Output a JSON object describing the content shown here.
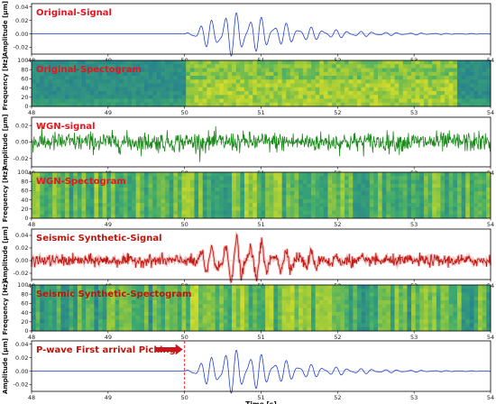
{
  "chart_data": [
    {
      "type": "line",
      "annotation": "Original-Signal",
      "ylabel": "Amplitude [μm]",
      "x_ticks": [
        "48",
        "49",
        "50",
        "51",
        "52",
        "53",
        "54"
      ],
      "y_ticks": [
        "0.04",
        "0.02",
        "0.00",
        "-0.02"
      ],
      "xlim": [
        48,
        54
      ],
      "ylim": [
        -0.03,
        0.045
      ],
      "series": [
        {
          "color": "#1f3fd6",
          "signal_onset_s": 50.0,
          "peak_time_s": 50.8,
          "peak_amplitude": 0.04
        }
      ]
    },
    {
      "type": "heatmap",
      "annotation": "Original-Spectogram",
      "ylabel": "Frequency [Hz]",
      "x_ticks": [
        "48",
        "49",
        "50",
        "51",
        "52",
        "53",
        "54"
      ],
      "y_ticks": [
        "100",
        "80",
        "60",
        "40",
        "20",
        "0"
      ],
      "xlim": [
        48,
        54
      ],
      "ylim": [
        0,
        100
      ]
    },
    {
      "type": "line",
      "annotation": "WGN-signal",
      "ylabel": "Amplitude [μm]",
      "x_ticks": [
        "48",
        "49",
        "50",
        "51",
        "52",
        "53",
        "54"
      ],
      "y_ticks": [
        "0.02",
        "0.00",
        "-0.02"
      ],
      "xlim": [
        48,
        54
      ],
      "ylim": [
        -0.03,
        0.03
      ],
      "series": [
        {
          "color": "#1a8a1a"
        }
      ]
    },
    {
      "type": "heatmap",
      "annotation": "WGN-Spectogram",
      "ylabel": "Frequency [Hz]",
      "x_ticks": [
        "48",
        "49",
        "50",
        "51",
        "52",
        "53",
        "54"
      ],
      "y_ticks": [
        "100",
        "80",
        "60",
        "40",
        "20",
        "0"
      ],
      "xlim": [
        48,
        54
      ],
      "ylim": [
        0,
        100
      ]
    },
    {
      "type": "line",
      "annotation": "Seismic Synthetic-Signal",
      "ylabel": "Amplitude [μm]",
      "x_ticks": [
        "48",
        "49",
        "50",
        "51",
        "52",
        "53",
        "54"
      ],
      "y_ticks": [
        "0.04",
        "0.02",
        "0.00",
        "-0.02"
      ],
      "xlim": [
        48,
        54
      ],
      "ylim": [
        -0.03,
        0.05
      ],
      "series": [
        {
          "color": "#c0140c"
        }
      ]
    },
    {
      "type": "heatmap",
      "annotation": "Seismic Synthetic-Spectogram",
      "ylabel": "Frequency [Hz]",
      "x_ticks": [
        "48",
        "49",
        "50",
        "51",
        "52",
        "53",
        "54"
      ],
      "y_ticks": [
        "100",
        "80",
        "60",
        "40",
        "20",
        "0"
      ],
      "xlim": [
        48,
        54
      ],
      "ylim": [
        0,
        100
      ]
    },
    {
      "type": "line",
      "annotation": "P-wave First arrival Picking",
      "ylabel": "Amplitude [μm]",
      "xlabel": "Time [s]",
      "x_ticks": [
        "48",
        "49",
        "50",
        "51",
        "52",
        "53",
        "54"
      ],
      "y_ticks": [
        "0.04",
        "0.02",
        "0.00",
        "-0.02"
      ],
      "xlim": [
        48,
        54
      ],
      "ylim": [
        -0.03,
        0.045
      ],
      "first_arrival_s": 50.0,
      "series": [
        {
          "color": "#1f3fd6"
        }
      ]
    }
  ],
  "colors": {
    "annotation_red": "#e8141e",
    "annotation_dark_red": "#c0140c",
    "arrow_red": "#c8161d",
    "pick_line": "#e81818"
  }
}
